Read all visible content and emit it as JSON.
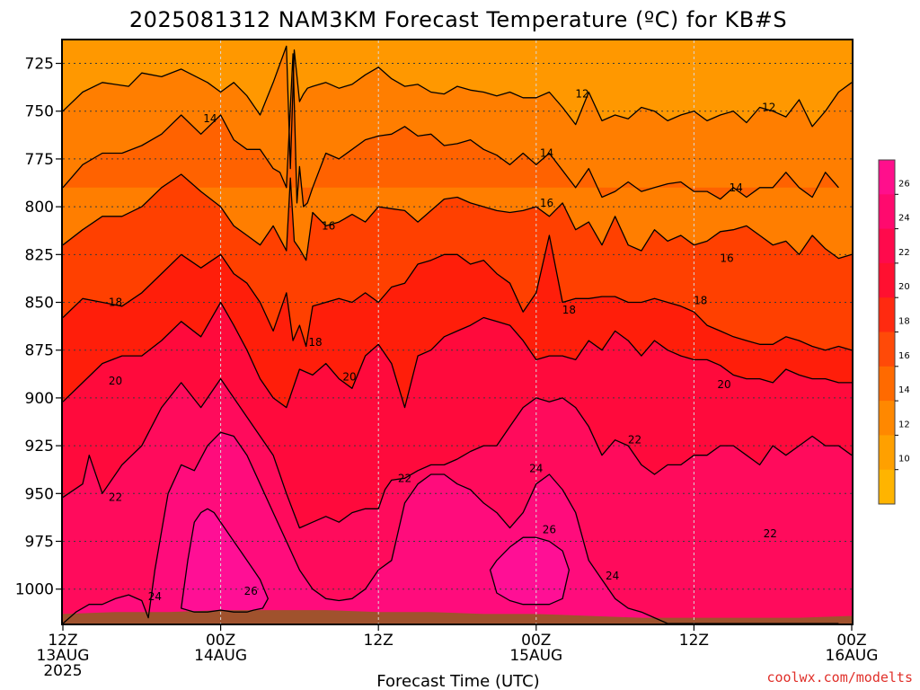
{
  "chart_data": {
    "type": "heatmap",
    "title": "2025081312 NAM3KM Forecast Temperature (ºC) for KB#S",
    "xlabel": "Forecast Time (UTC)",
    "credit": "coolwx.com/modelts",
    "x_ticks": [
      {
        "hour": 0,
        "line1": "12Z",
        "line2": "13AUG",
        "line3": "2025"
      },
      {
        "hour": 12,
        "line1": "00Z",
        "line2": "14AUG",
        "line3": ""
      },
      {
        "hour": 24,
        "line1": "12Z",
        "line2": "",
        "line3": ""
      },
      {
        "hour": 36,
        "line1": "00Z",
        "line2": "15AUG",
        "line3": ""
      },
      {
        "hour": 48,
        "line1": "12Z",
        "line2": "",
        "line3": ""
      },
      {
        "hour": 60,
        "line1": "00Z",
        "line2": "16AUG",
        "line3": ""
      }
    ],
    "y_ticks": [
      725,
      750,
      775,
      800,
      825,
      850,
      875,
      900,
      925,
      950,
      975,
      1000
    ],
    "xlim_hours": [
      0,
      60
    ],
    "ylim_hpa": [
      713,
      1018
    ],
    "y_reversed": true,
    "grid": true,
    "colorbar": {
      "labels": [
        "26",
        "24",
        "22",
        "20",
        "18",
        "16",
        "14",
        "12",
        "10"
      ],
      "colors": [
        "#ff0f8c",
        "#ff0a6e",
        "#ff0a4c",
        "#ff1030",
        "#ff2a10",
        "#ff4a08",
        "#ff6a00",
        "#ff8800",
        "#ffa000",
        "#ffb400"
      ]
    },
    "level_colors": {
      "lt12": "#ff9800",
      "12_14": "#ff7e00",
      "14_16": "#ff6200",
      "16_18": "#ff4000",
      "18_20": "#ff1e0a",
      "20_22": "#ff0a3c",
      "22_24": "#ff0b5c",
      "24_26": "#ff0c7c",
      "26_28": "#ff0f95",
      "ground": "#a0522d"
    },
    "isotherms": [
      {
        "temp": 12,
        "hours": [
          0,
          1.5,
          3,
          5,
          6,
          7.5,
          9,
          11,
          12,
          13,
          14,
          15,
          16,
          17,
          17.3,
          17.6,
          18,
          18.3,
          18.6,
          19,
          20,
          21,
          22,
          23,
          24,
          25,
          26,
          27,
          28,
          29,
          30,
          31,
          32,
          33,
          34,
          35,
          36,
          37,
          38,
          39,
          40,
          41,
          42,
          43,
          44,
          45,
          46,
          47,
          48,
          49,
          50,
          51,
          52,
          53,
          54,
          55,
          56,
          57,
          58,
          59,
          60
        ],
        "hpa": [
          750,
          740,
          735,
          737,
          730,
          732,
          728,
          735,
          740,
          735,
          742,
          752,
          735,
          716,
          780,
          718,
          745,
          741,
          738,
          737,
          735,
          738,
          736,
          731,
          727,
          733,
          737,
          736,
          740,
          741,
          737,
          739,
          740,
          742,
          740,
          743,
          743,
          740,
          748,
          757,
          740,
          755,
          752,
          754,
          748,
          750,
          755,
          752,
          750,
          755,
          752,
          750,
          756,
          748,
          750,
          753,
          744,
          758,
          750,
          740,
          735
        ]
      },
      {
        "temp": 14,
        "hours": [
          0,
          1.5,
          3,
          4.5,
          6,
          7.5,
          9,
          10.5,
          12,
          13,
          14,
          15,
          16,
          16.5,
          17,
          17.5,
          17.8,
          18,
          18.3,
          18.6,
          19,
          20,
          21,
          22,
          23,
          24,
          25,
          26,
          27,
          28,
          29,
          30,
          31,
          32,
          33,
          34,
          35,
          36,
          37,
          38,
          39,
          40,
          41,
          42,
          43,
          44,
          45,
          46,
          47,
          48,
          49,
          50,
          51,
          52,
          53,
          54,
          55,
          56,
          57,
          58,
          59,
          60
        ],
        "hpa": [
          790,
          778,
          772,
          772,
          768,
          762,
          752,
          762,
          752,
          765,
          770,
          770,
          780,
          782,
          790,
          720,
          798,
          779,
          800,
          798,
          790,
          772,
          775,
          770,
          765,
          763,
          762,
          758,
          763,
          762,
          768,
          767,
          765,
          770,
          773,
          778,
          772,
          778,
          772,
          781,
          790,
          780,
          795,
          792,
          787,
          792,
          790,
          788,
          787,
          792,
          792,
          796,
          790,
          795,
          790,
          790,
          782,
          790,
          795,
          782,
          790
        ]
      },
      {
        "temp": 16,
        "hours": [
          0,
          1.5,
          3,
          4.5,
          6,
          7.5,
          9,
          10.5,
          12,
          13,
          14,
          15,
          16,
          17,
          17.3,
          17.6,
          18,
          18.5,
          19,
          20,
          21,
          22,
          23,
          24,
          25,
          26,
          27,
          28,
          29,
          30,
          31,
          32,
          33,
          34,
          35,
          36,
          37,
          38,
          39,
          40,
          41,
          42,
          43,
          44,
          45,
          46,
          47,
          48,
          49,
          50,
          51,
          52,
          53,
          54,
          55,
          56,
          57,
          58,
          59,
          60
        ],
        "hpa": [
          820,
          812,
          805,
          805,
          800,
          790,
          783,
          792,
          800,
          810,
          815,
          820,
          810,
          823,
          785,
          818,
          822,
          828,
          803,
          810,
          808,
          804,
          808,
          800,
          801,
          802,
          808,
          802,
          796,
          795,
          798,
          800,
          802,
          803,
          802,
          800,
          805,
          798,
          812,
          808,
          820,
          805,
          820,
          823,
          812,
          818,
          815,
          820,
          818,
          813,
          812,
          810,
          815,
          820,
          818,
          825,
          815,
          822,
          827,
          825,
          840
        ]
      },
      {
        "temp": 18,
        "hours": [
          0,
          1.5,
          3,
          4.5,
          6,
          7.5,
          9,
          10.5,
          12,
          13,
          14,
          15,
          16,
          17,
          17.5,
          18,
          18.5,
          19,
          20,
          21,
          22,
          23,
          24,
          25,
          26,
          27,
          28,
          29,
          30,
          31,
          32,
          33,
          34,
          35,
          36,
          37,
          38,
          39,
          40,
          41,
          42,
          43,
          44,
          45,
          46,
          47,
          48,
          49,
          50,
          51,
          52,
          53,
          54,
          55,
          56,
          57,
          58,
          59,
          60
        ],
        "hpa": [
          858,
          848,
          850,
          852,
          845,
          835,
          825,
          832,
          825,
          835,
          840,
          850,
          865,
          845,
          870,
          862,
          873,
          852,
          850,
          848,
          850,
          845,
          850,
          842,
          840,
          830,
          828,
          825,
          825,
          830,
          828,
          835,
          840,
          855,
          845,
          815,
          850,
          848,
          848,
          847,
          847,
          850,
          850,
          848,
          850,
          852,
          855,
          862,
          865,
          868,
          870,
          872,
          872,
          868,
          870,
          873,
          875,
          873,
          875,
          875,
          875
        ]
      },
      {
        "temp": 20,
        "hours": [
          0,
          1.5,
          3,
          4.5,
          6,
          7.5,
          9,
          10.5,
          12,
          13,
          14,
          15,
          16,
          17,
          18,
          19,
          20,
          21,
          22,
          23,
          24,
          25,
          26,
          27,
          28,
          29,
          30,
          31,
          32,
          33,
          34,
          35,
          36,
          37,
          38,
          39,
          40,
          41,
          42,
          43,
          44,
          45,
          46,
          47,
          48,
          49,
          50,
          51,
          52,
          53,
          54,
          55,
          56,
          57,
          58,
          59,
          60
        ],
        "hpa": [
          902,
          892,
          882,
          878,
          878,
          870,
          860,
          868,
          850,
          862,
          875,
          890,
          900,
          905,
          885,
          888,
          882,
          890,
          895,
          878,
          872,
          882,
          905,
          878,
          875,
          868,
          865,
          862,
          858,
          860,
          862,
          870,
          880,
          878,
          878,
          880,
          870,
          875,
          865,
          870,
          878,
          870,
          875,
          878,
          880,
          880,
          883,
          888,
          890,
          890,
          892,
          885,
          888,
          890,
          890,
          892,
          892,
          892,
          895,
          898,
          900
        ]
      },
      {
        "temp": 22,
        "hours": [
          0,
          1.5,
          2,
          3,
          4.5,
          6,
          7.5,
          9,
          10.5,
          12,
          13,
          14,
          15,
          16,
          17,
          18,
          19,
          20,
          21,
          22,
          23,
          24,
          24.5,
          25,
          26,
          27,
          28,
          29,
          30,
          31,
          32,
          33,
          34,
          35,
          36,
          37,
          38,
          39,
          40,
          41,
          42,
          43,
          44,
          45,
          46,
          47,
          48,
          49,
          50,
          51,
          52,
          53,
          54,
          55,
          56,
          57,
          58,
          59,
          60
        ],
        "hpa": [
          952,
          945,
          930,
          950,
          935,
          925,
          905,
          892,
          905,
          890,
          900,
          910,
          920,
          930,
          950,
          968,
          965,
          962,
          965,
          960,
          958,
          958,
          948,
          943,
          942,
          938,
          935,
          935,
          932,
          928,
          925,
          925,
          915,
          905,
          900,
          902,
          900,
          905,
          915,
          930,
          922,
          925,
          935,
          940,
          935,
          935,
          930,
          930,
          925,
          925,
          930,
          935,
          925,
          930,
          925,
          920,
          925,
          925,
          930,
          928,
          930
        ]
      },
      {
        "temp": 24,
        "hours": [
          0,
          1,
          2,
          3,
          4,
          5,
          6,
          6.5,
          7,
          8,
          9,
          10,
          11,
          12,
          13,
          14,
          15,
          16,
          17,
          18,
          19,
          20,
          21,
          22,
          23,
          24,
          25,
          26,
          27,
          28,
          29,
          30,
          31,
          32,
          33,
          34,
          35,
          36,
          37,
          38,
          39,
          40,
          41,
          42,
          43,
          44,
          45,
          46,
          47,
          48,
          49,
          50,
          51,
          52,
          53,
          54,
          55,
          56,
          57,
          58,
          59,
          60
        ],
        "hpa": [
          1018,
          1012,
          1008,
          1008,
          1005,
          1003,
          1006,
          1015,
          990,
          950,
          935,
          938,
          925,
          918,
          920,
          930,
          945,
          960,
          975,
          990,
          1000,
          1005,
          1006,
          1005,
          1000,
          990,
          985,
          955,
          945,
          940,
          940,
          945,
          948,
          955,
          960,
          968,
          960,
          945,
          940,
          948,
          960,
          985,
          995,
          1005,
          1010,
          1012,
          1015,
          1018,
          1018,
          1018,
          1018,
          1018,
          1018,
          1018,
          1018,
          1018,
          1018,
          1018,
          1018,
          1018,
          1018
        ]
      },
      {
        "temp": 26,
        "hours": [
          9,
          9.5,
          10,
          10.5,
          11,
          11.5,
          12,
          12.5,
          13,
          13.5,
          14,
          14.5,
          15,
          15.3,
          15.6,
          15.2,
          14.5,
          14,
          13,
          12,
          11,
          10,
          9.5,
          9
        ],
        "hpa": [
          1010,
          985,
          965,
          960,
          958,
          960,
          965,
          970,
          975,
          980,
          985,
          990,
          995,
          1000,
          1005,
          1010,
          1011,
          1012,
          1012,
          1011,
          1012,
          1012,
          1011,
          1010
        ]
      },
      {
        "temp": 26,
        "hours": [
          32.5,
          33,
          34,
          35,
          36,
          37,
          38,
          38.5,
          38,
          37,
          36,
          35,
          34,
          33,
          32.5
        ],
        "hpa": [
          990,
          985,
          978,
          973,
          973,
          975,
          980,
          990,
          1005,
          1008,
          1008,
          1008,
          1006,
          1002,
          990
        ]
      }
    ],
    "contour_labels": [
      {
        "text": "12",
        "hour": 39.5,
        "hpa": 741
      },
      {
        "text": "12",
        "hour": 53.7,
        "hpa": 748
      },
      {
        "text": "14",
        "hour": 11.2,
        "hpa": 754
      },
      {
        "text": "14",
        "hour": 36.8,
        "hpa": 772
      },
      {
        "text": "14",
        "hour": 51.2,
        "hpa": 790
      },
      {
        "text": "16",
        "hour": 20.2,
        "hpa": 810
      },
      {
        "text": "16",
        "hour": 36.8,
        "hpa": 798
      },
      {
        "text": "16",
        "hour": 50.5,
        "hpa": 827
      },
      {
        "text": "18",
        "hour": 4,
        "hpa": 850
      },
      {
        "text": "18",
        "hour": 19.2,
        "hpa": 871
      },
      {
        "text": "18",
        "hour": 38.5,
        "hpa": 854
      },
      {
        "text": "18",
        "hour": 48.5,
        "hpa": 849
      },
      {
        "text": "20",
        "hour": 4,
        "hpa": 891
      },
      {
        "text": "20",
        "hour": 21.8,
        "hpa": 889
      },
      {
        "text": "20",
        "hour": 50.3,
        "hpa": 893
      },
      {
        "text": "22",
        "hour": 4,
        "hpa": 952
      },
      {
        "text": "22",
        "hour": 26,
        "hpa": 942
      },
      {
        "text": "22",
        "hour": 43.5,
        "hpa": 922
      },
      {
        "text": "22",
        "hour": 53.8,
        "hpa": 971
      },
      {
        "text": "24",
        "hour": 7,
        "hpa": 1004
      },
      {
        "text": "24",
        "hour": 36,
        "hpa": 937
      },
      {
        "text": "24",
        "hour": 41.8,
        "hpa": 993
      },
      {
        "text": "26",
        "hour": 14.3,
        "hpa": 1001
      },
      {
        "text": "26",
        "hour": 37,
        "hpa": 969
      }
    ],
    "ground_hpa": [
      1013,
      1012,
      1012,
      1011,
      1011,
      1011,
      1012,
      1012,
      1013,
      1013,
      1014,
      1015,
      1015,
      1015,
      1015,
      1014
    ]
  }
}
